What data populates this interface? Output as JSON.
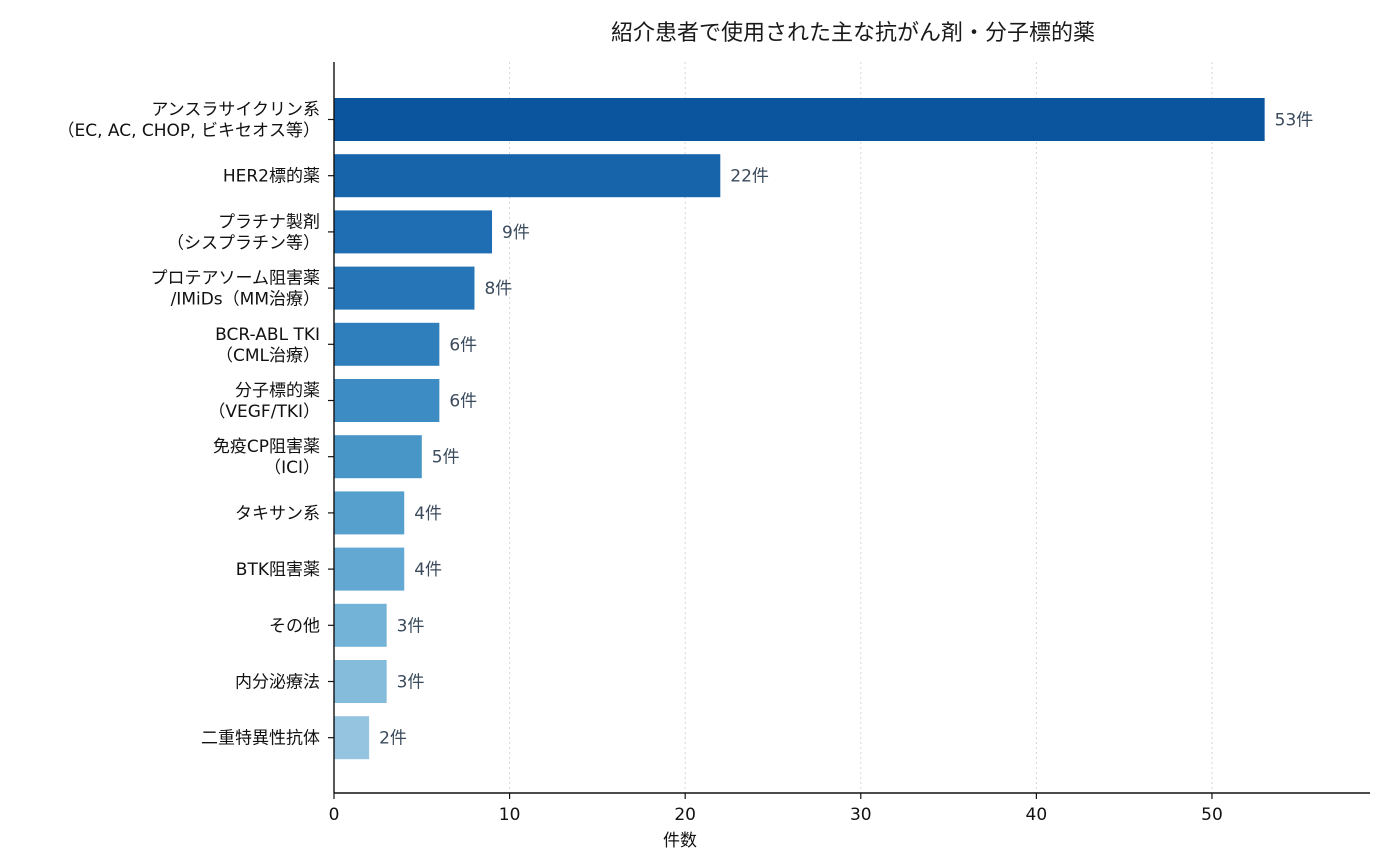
{
  "chart_data": {
    "type": "bar",
    "orientation": "horizontal",
    "title": "紹介患者で使用された主な抗がん剤・分子標的薬",
    "xlabel": "件数",
    "ylabel": "",
    "xlim": [
      0,
      59
    ],
    "xticks": [
      "0",
      "10",
      "20",
      "30",
      "40",
      "50"
    ],
    "grid": "x-dotted",
    "categories": [
      [
        "アンスラサイクリン系",
        "（EC, AC, CHOP, ビキセオス等）"
      ],
      [
        "HER2標的薬"
      ],
      [
        "プラチナ製剤",
        "（シスプラチン等）"
      ],
      [
        "プロテアソーム阻害薬",
        "/IMiDs（MM治療）"
      ],
      [
        "BCR-ABL TKI",
        "（CML治療）"
      ],
      [
        "分子標的薬",
        "（VEGF/TKI）"
      ],
      [
        "免疫CP阻害薬",
        "（ICI）"
      ],
      [
        "タキサン系"
      ],
      [
        "BTK阻害薬"
      ],
      [
        "その他"
      ],
      [
        "内分泌療法"
      ],
      [
        "二重特異性抗体"
      ]
    ],
    "values": [
      53,
      22,
      9,
      8,
      6,
      6,
      5,
      4,
      4,
      3,
      3,
      2
    ],
    "data_labels": [
      "53件",
      "22件",
      "9件",
      "8件",
      "6件",
      "6件",
      "5件",
      "4件",
      "4件",
      "3件",
      "3件",
      "2件"
    ],
    "colors": [
      "#0b559f",
      "#1764ab",
      "#1f6eb3",
      "#2575b7",
      "#2f7fbc",
      "#3d8dc4",
      "#4896c8",
      "#56a0ce",
      "#62a8d2",
      "#74b3d8",
      "#85bcdc",
      "#94c4df"
    ]
  }
}
